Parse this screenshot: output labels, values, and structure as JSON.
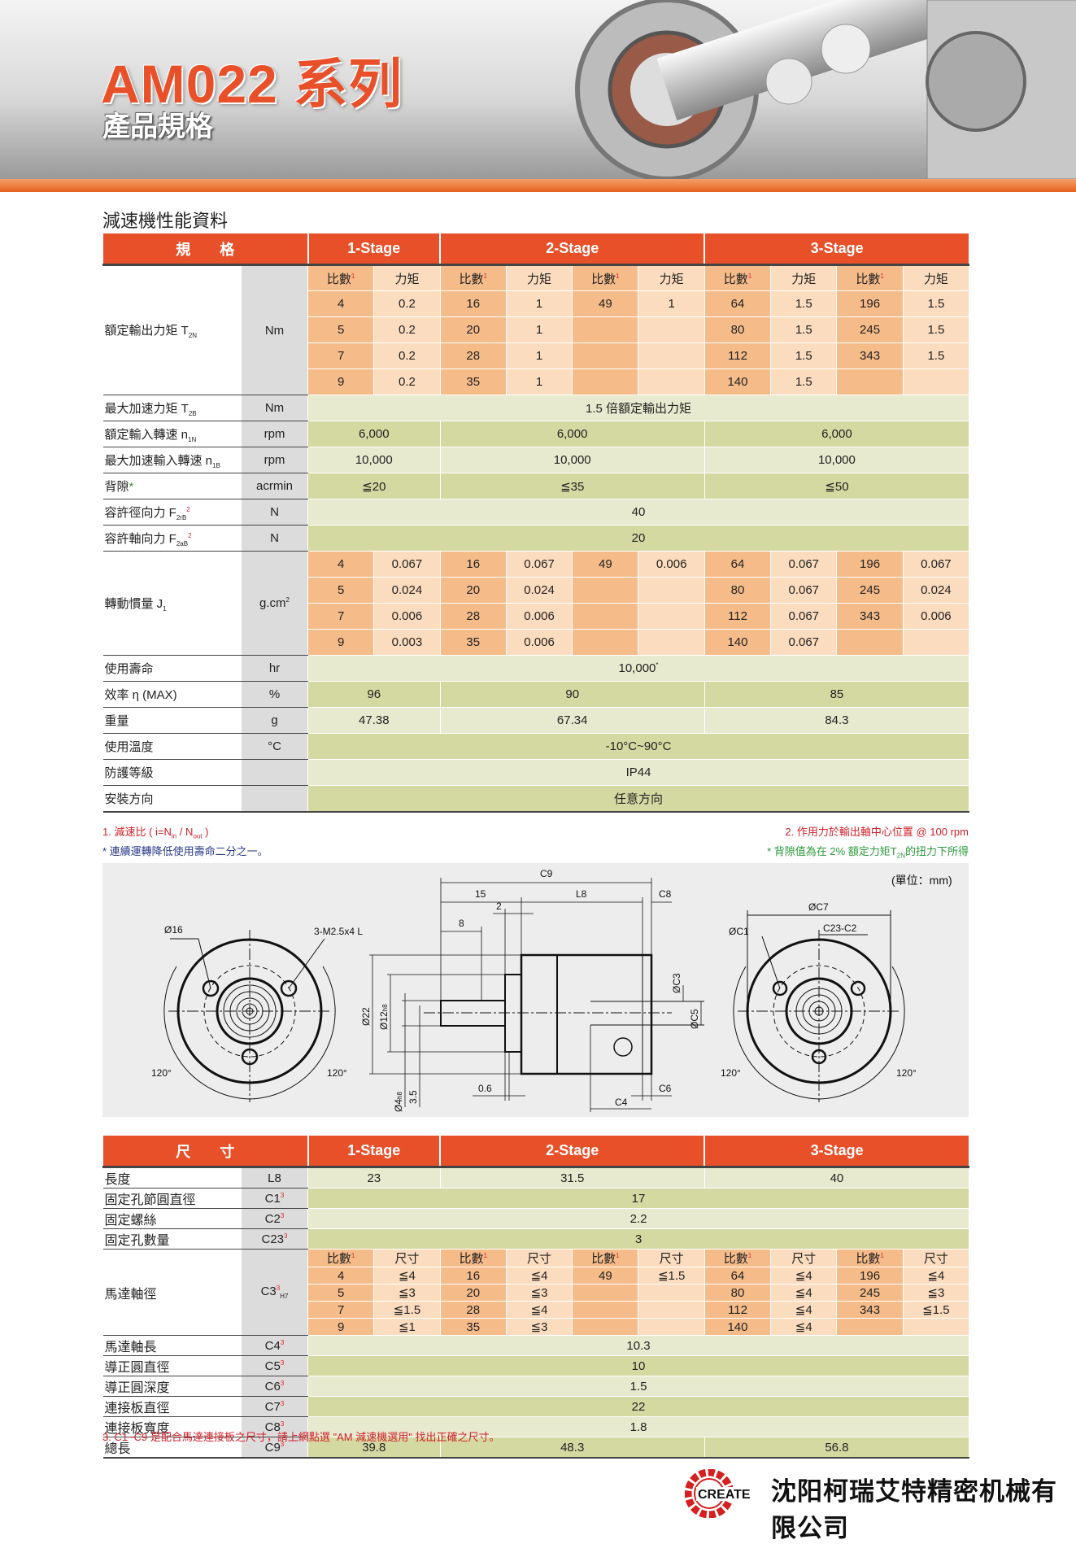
{
  "banner": {
    "title": "AM022 系列",
    "subtitle": "產品規格"
  },
  "spec": {
    "title": "減速機性能資料",
    "head_label": "規　　格",
    "stages": [
      "1-Stage",
      "2-Stage",
      "3-Stage"
    ],
    "sub_cols": [
      "比數",
      "力矩"
    ],
    "sub_sup": "1",
    "rows": [
      {
        "label": "額定輸出力矩 T",
        "sub": "2N",
        "unit": "Nm",
        "subheader": true,
        "grid": [
          [
            "4",
            "0.2",
            "16",
            "1",
            "49",
            "1",
            "64",
            "1.5",
            "196",
            "1.5"
          ],
          [
            "5",
            "0.2",
            "20",
            "1",
            "",
            "",
            "80",
            "1.5",
            "245",
            "1.5"
          ],
          [
            "7",
            "0.2",
            "28",
            "1",
            "",
            "",
            "112",
            "1.5",
            "343",
            "1.5"
          ],
          [
            "9",
            "0.2",
            "35",
            "1",
            "",
            "",
            "140",
            "1.5",
            "",
            ""
          ]
        ]
      },
      {
        "label": "最大加速力矩 T",
        "sub": "2B",
        "unit": "Nm",
        "all": "1.5 倍額定輸出力矩"
      },
      {
        "label": "額定輸入轉速 n",
        "sub": "1N",
        "unit": "rpm",
        "stage_values": [
          "6,000",
          "6,000",
          "6,000"
        ]
      },
      {
        "label": "最大加速輸入轉速 n",
        "sub": "1B",
        "unit": "rpm",
        "stage_values": [
          "10,000",
          "10,000",
          "10,000"
        ]
      },
      {
        "label": "背隙",
        "mark": "*",
        "unit": "acrmin",
        "stage_values": [
          "≦20",
          "≦35",
          "≦50"
        ]
      },
      {
        "label": "容許徑向力 F",
        "sub": "2rB",
        "sup": "2",
        "unit": "N",
        "all": "40"
      },
      {
        "label": "容許軸向力 F",
        "sub": "2aB",
        "sup": "2",
        "unit": "N",
        "all": "20"
      },
      {
        "label": "轉動慣量 J",
        "sub": "1",
        "unit": "g.cm",
        "unit_sup": "2",
        "grid": [
          [
            "4",
            "0.067",
            "16",
            "0.067",
            "49",
            "0.006",
            "64",
            "0.067",
            "196",
            "0.067"
          ],
          [
            "5",
            "0.024",
            "20",
            "0.024",
            "",
            "",
            "80",
            "0.067",
            "245",
            "0.024"
          ],
          [
            "7",
            "0.006",
            "28",
            "0.006",
            "",
            "",
            "112",
            "0.067",
            "343",
            "0.006"
          ],
          [
            "9",
            "0.003",
            "35",
            "0.006",
            "",
            "",
            "140",
            "0.067",
            "",
            ""
          ]
        ]
      },
      {
        "label": "使用壽命",
        "unit": "hr",
        "all": "10,000",
        "all_sup": "*"
      },
      {
        "label": "效率 η (MAX)",
        "unit": "%",
        "stage_values": [
          "96",
          "90",
          "85"
        ]
      },
      {
        "label": "重量",
        "unit": "g",
        "stage_values": [
          "47.38",
          "67.34",
          "84.3"
        ]
      },
      {
        "label": "使用溫度",
        "unit": "°C",
        "all": "-10°C~90°C"
      },
      {
        "label": "防護等級",
        "unit": "",
        "all": "IP44"
      },
      {
        "label": "安裝方向",
        "unit": "",
        "all": "任意方向"
      }
    ]
  },
  "notes": {
    "n1": "1. 減速比 ( i=N",
    "n1_in": "in",
    "n1_mid": " / N",
    "n1_out": "out",
    "n1_end": " )",
    "n2": "2. 作用力於輸出軸中心位置 @ 100 rpm",
    "life": "* 連續運轉降低使用壽命二分之一。",
    "backlash_a": "* 背隙值為在 2% 額定力矩T",
    "backlash_sub": "2N",
    "backlash_b": "的扭力下所得",
    "n3": "3. C1~C9 是配合馬達連接板之尺寸，請上網點選 \"AM 減速機選用\" 找出正確之尺寸。"
  },
  "diagram": {
    "unit": "(單位：mm)",
    "c9": "C9",
    "d15": "15",
    "l8": "L8",
    "c8": "C8",
    "d2": "2",
    "d8": "8",
    "phi16": "Ø16",
    "screw": "3-M2.5x4 L",
    "phi22": "Ø22",
    "phi12": "Ø12",
    "phi12_tol": "h8",
    "phi4": "Ø4",
    "phi4_tol": "h8",
    "d35": "3.5",
    "d06": "0.6",
    "c6": "C6",
    "c4": "C4",
    "phic3": "ØC3",
    "phic5": "ØC5",
    "phic7": "ØC7",
    "phic1": "ØC1",
    "c23c2": "C23-C2",
    "angle": "120°"
  },
  "dims": {
    "head_label": "尺　　寸",
    "stages": [
      "1-Stage",
      "2-Stage",
      "3-Stage"
    ],
    "sub_cols": [
      "比數",
      "尺寸"
    ],
    "sub_sup": "1",
    "rows": [
      {
        "label": "長度",
        "unit": "L8",
        "stage_values": [
          "23",
          "31.5",
          "40"
        ]
      },
      {
        "label": "固定孔節圓直徑",
        "unit": "C1",
        "unit_sup": "3",
        "all": "17"
      },
      {
        "label": "固定螺絲",
        "unit": "C2",
        "unit_sup": "3",
        "all": "2.2"
      },
      {
        "label": "固定孔數量",
        "unit": "C23",
        "unit_sup": "3",
        "all": "3"
      },
      {
        "label": "馬達軸徑",
        "unit": "C3",
        "unit_sup": "3",
        "unit_sub": "H7",
        "subheader": true,
        "grid": [
          [
            "4",
            "≦4",
            "16",
            "≦4",
            "49",
            "≦1.5",
            "64",
            "≦4",
            "196",
            "≦4"
          ],
          [
            "5",
            "≦3",
            "20",
            "≦3",
            "",
            "",
            "80",
            "≦4",
            "245",
            "≦3"
          ],
          [
            "7",
            "≦1.5",
            "28",
            "≦4",
            "",
            "",
            "112",
            "≦4",
            "343",
            "≦1.5"
          ],
          [
            "9",
            "≦1",
            "35",
            "≦3",
            "",
            "",
            "140",
            "≦4",
            "",
            ""
          ]
        ]
      },
      {
        "label": "馬達軸長",
        "unit": "C4",
        "unit_sup": "3",
        "all": "10.3"
      },
      {
        "label": "導正圓直徑",
        "unit": "C5",
        "unit_sup": "3",
        "all": "10"
      },
      {
        "label": "導正圓深度",
        "unit": "C6",
        "unit_sup": "3",
        "all": "1.5"
      },
      {
        "label": "連接板直徑",
        "unit": "C7",
        "unit_sup": "3",
        "all": "22"
      },
      {
        "label": "連接板寬度",
        "unit": "C8",
        "unit_sup": "3",
        "all": "1.8"
      },
      {
        "label": "總長",
        "unit": "C9",
        "unit_sup": "3",
        "stage_values": [
          "39.8",
          "48.3",
          "56.8"
        ]
      }
    ]
  },
  "footer": {
    "logo_text": "CREATE",
    "company": "沈阳柯瑞艾特精密机械有限公司"
  },
  "colors": {
    "accent": "#e8502a",
    "ratio_cell": "#f5bb89",
    "value_cell": "#fcdcbe",
    "green_light": "#e7eace",
    "green_dark": "#d4d9a1"
  }
}
